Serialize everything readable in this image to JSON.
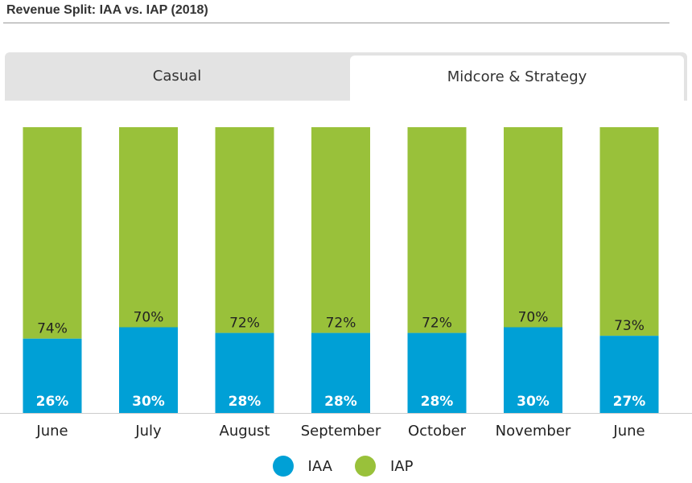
{
  "title": "Revenue Split: IAA vs. IAP (2018)",
  "tabs": [
    {
      "label": "Casual",
      "active": false
    },
    {
      "label": "Midcore & Strategy",
      "active": true
    }
  ],
  "colors": {
    "IAA": "#00a0d6",
    "IAP": "#99c13a"
  },
  "chart_data": {
    "type": "bar",
    "stacked": true,
    "percent": true,
    "categories": [
      "June",
      "July",
      "August",
      "September",
      "October",
      "November",
      "June"
    ],
    "series": [
      {
        "name": "IAA",
        "values": [
          26,
          30,
          28,
          28,
          28,
          30,
          27
        ],
        "labels": [
          "26%",
          "30%",
          "28%",
          "28%",
          "28%",
          "30%",
          "27%"
        ]
      },
      {
        "name": "IAP",
        "values": [
          74,
          70,
          72,
          72,
          72,
          70,
          73
        ],
        "labels": [
          "74%",
          "70%",
          "72%",
          "72%",
          "72%",
          "70%",
          "73%"
        ]
      }
    ],
    "ylim": [
      0,
      100
    ],
    "legend": "bottom-center"
  }
}
